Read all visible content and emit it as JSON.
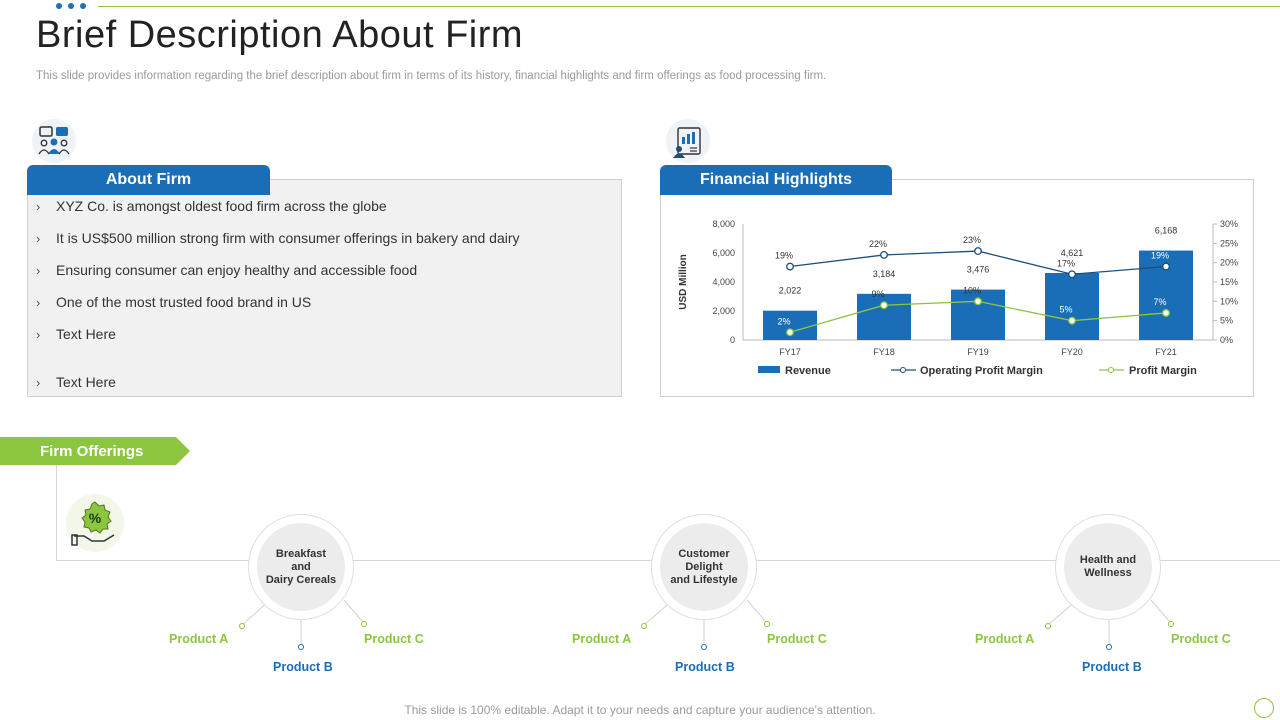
{
  "slide": {
    "title": "Brief Description About Firm",
    "subtitle": "This slide provides information regarding the brief description about firm in terms of its history, financial highlights and firm offerings as food processing firm.",
    "footer": "This slide is 100% editable. Adapt it to your needs and capture your audience's attention."
  },
  "about_firm": {
    "heading": "About Firm",
    "icon": "meeting-people-icon",
    "bullets": [
      "XYZ Co. is amongst oldest food firm across the globe",
      "It is US$500 million strong firm with consumer offerings in bakery and dairy",
      "Ensuring consumer can enjoy healthy and accessible food",
      "One of the most trusted food brand in US",
      "Text Here",
      "Text Here"
    ]
  },
  "financial_highlights": {
    "heading": "Financial Highlights",
    "icon": "financial-report-icon"
  },
  "chart_data": {
    "type": "bar",
    "categories": [
      "FY17",
      "FY18",
      "FY19",
      "FY20",
      "FY21"
    ],
    "series": [
      {
        "name": "Revenue",
        "type": "bar",
        "axis": "left",
        "values": [
          2022,
          3184,
          3476,
          4621,
          6168
        ],
        "labels": [
          "2,022",
          "3,184",
          "3,476",
          "4,621",
          "6,168"
        ]
      },
      {
        "name": "Operating Profit Margin",
        "type": "line",
        "axis": "right",
        "values": [
          19,
          22,
          23,
          17,
          19
        ],
        "labels": [
          "19%",
          "22%",
          "23%",
          "17%",
          "19%"
        ]
      },
      {
        "name": "Profit Margin",
        "type": "line",
        "axis": "right",
        "values": [
          2,
          9,
          10,
          5,
          7
        ],
        "labels": [
          "2%",
          "9%",
          "10%",
          "5%",
          "7%"
        ]
      }
    ],
    "ylabel": "USD Million",
    "ylim": [
      0,
      8000
    ],
    "yticks": [
      "0",
      "2,000",
      "4,000",
      "6,000",
      "8,000"
    ],
    "y2lim": [
      0,
      30
    ],
    "y2ticks": [
      "0%",
      "5%",
      "10%",
      "15%",
      "20%",
      "25%",
      "30%"
    ],
    "legend_position": "bottom",
    "grid": false,
    "colors": {
      "bar": "#1a6eb8",
      "operating": "#1f4e79",
      "profit": "#8cc63f"
    }
  },
  "firm_offerings": {
    "heading": "Firm Offerings",
    "icon": "percent-hand-icon",
    "categories": [
      {
        "label": "Breakfast\nand\nDairy Cereals",
        "products": [
          "Product A",
          "Product B",
          "Product C"
        ]
      },
      {
        "label": "Customer\nDelight\nand Lifestyle",
        "products": [
          "Product A",
          "Product B",
          "Product C"
        ]
      },
      {
        "label": "Health and\nWellness",
        "products": [
          "Product A",
          "Product B",
          "Product C"
        ]
      }
    ]
  },
  "colors": {
    "accent_blue": "#1a6eb8",
    "accent_green": "#8cc63f"
  }
}
